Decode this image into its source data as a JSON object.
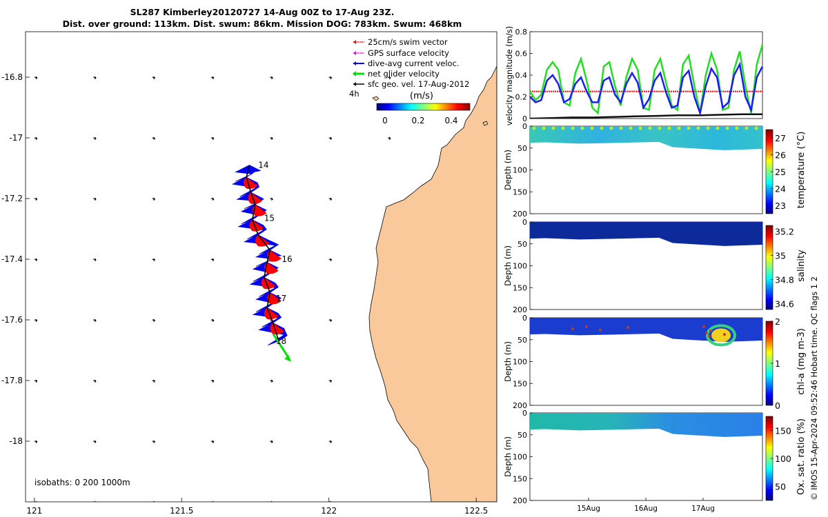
{
  "title_line1": "SL287 Kimberley20120727 14-Aug 00Z to 17-Aug 23Z.",
  "title_line2": "Dist. over ground: 113km. Dist. swum: 86km. Mission DOG: 783km. Swum: 468km",
  "colors": {
    "land": "#f9c99b",
    "swim": "#ff0000",
    "gps": "#ff00ff",
    "current": "#0000ff",
    "net": "#00dd00",
    "sfc": "#000000"
  },
  "chart_data": [
    {
      "id": "map",
      "type": "scatter",
      "x_ticks": [
        "121",
        "121.5",
        "122",
        "122.5"
      ],
      "y_ticks": [
        "-16.8",
        "-17",
        "-17.2",
        "-17.4",
        "-17.6",
        "-17.8",
        "-18"
      ],
      "xlim": [
        120.97,
        122.57
      ],
      "ylim": [
        -18.2,
        -16.65
      ],
      "legend": [
        "25cm/s swim vector",
        "GPS surface velocity",
        "dive-avg current veloc.",
        "net glider velocity",
        "sfc geo. vel. 17-Aug-2012"
      ],
      "legend_extra_label": "4h",
      "colorbar_label": "(m/s)",
      "colorbar_ticks": [
        "0",
        "0.2",
        "0.4"
      ],
      "day_labels": [
        "14",
        "15",
        "16",
        "17",
        "18"
      ],
      "day_label_positions": [
        {
          "lon": 121.76,
          "lat": -17.09
        },
        {
          "lon": 121.78,
          "lat": -17.265
        },
        {
          "lon": 121.84,
          "lat": -17.4
        },
        {
          "lon": 121.82,
          "lat": -17.53
        },
        {
          "lon": 121.82,
          "lat": -17.67
        }
      ],
      "track": [
        {
          "lon": 121.73,
          "lat": -17.09
        },
        {
          "lon": 121.72,
          "lat": -17.13
        },
        {
          "lon": 121.735,
          "lat": -17.18
        },
        {
          "lon": 121.75,
          "lat": -17.22
        },
        {
          "lon": 121.74,
          "lat": -17.27
        },
        {
          "lon": 121.76,
          "lat": -17.32
        },
        {
          "lon": 121.8,
          "lat": -17.37
        },
        {
          "lon": 121.79,
          "lat": -17.41
        },
        {
          "lon": 121.78,
          "lat": -17.46
        },
        {
          "lon": 121.8,
          "lat": -17.51
        },
        {
          "lon": 121.79,
          "lat": -17.56
        },
        {
          "lon": 121.81,
          "lat": -17.61
        },
        {
          "lon": 121.83,
          "lat": -17.67
        }
      ],
      "isobath_text": "isobaths: 0   200  1000m"
    },
    {
      "id": "velocity",
      "type": "line",
      "ylabel": "velocity magnitude (m/s)",
      "y_ticks": [
        "0",
        "0.2",
        "0.4",
        "0.6",
        "0.8"
      ],
      "ylim": [
        0,
        0.8
      ],
      "x_range_days": [
        14.1,
        18.0
      ],
      "swim_const": 0.25,
      "series": [
        {
          "name": "net glider velocity",
          "values": [
            0.25,
            0.17,
            0.22,
            0.45,
            0.52,
            0.45,
            0.15,
            0.12,
            0.42,
            0.55,
            0.35,
            0.1,
            0.05,
            0.48,
            0.52,
            0.3,
            0.12,
            0.38,
            0.55,
            0.45,
            0.1,
            0.08,
            0.45,
            0.55,
            0.33,
            0.12,
            0.08,
            0.5,
            0.58,
            0.3,
            0.05,
            0.4,
            0.6,
            0.45,
            0.08,
            0.1,
            0.45,
            0.62,
            0.3,
            0.05,
            0.5,
            0.68
          ]
        },
        {
          "name": "dive-avg current veloc.",
          "values": [
            0.2,
            0.15,
            0.17,
            0.35,
            0.4,
            0.32,
            0.15,
            0.18,
            0.32,
            0.38,
            0.25,
            0.15,
            0.15,
            0.35,
            0.38,
            0.22,
            0.15,
            0.32,
            0.42,
            0.33,
            0.1,
            0.18,
            0.35,
            0.42,
            0.24,
            0.1,
            0.12,
            0.38,
            0.44,
            0.2,
            0.05,
            0.3,
            0.46,
            0.38,
            0.1,
            0.15,
            0.4,
            0.5,
            0.2,
            0.08,
            0.38,
            0.48
          ]
        },
        {
          "name": "sfc geo. vel.",
          "values": [
            0.0,
            0.005,
            0.01,
            0.01,
            0.015,
            0.02,
            0.025,
            0.03,
            0.03,
            0.035,
            0.04,
            0.04
          ]
        }
      ]
    },
    {
      "id": "temperature",
      "type": "heatmap",
      "ylabel": "Depth (m)",
      "colorbar_label": "temperature (°C)",
      "y_ticks": [
        "0",
        "50",
        "100",
        "150",
        "200"
      ],
      "colorbar_ticks": [
        "23",
        "24",
        "25",
        "26",
        "27"
      ],
      "clim": [
        22.5,
        27.5
      ]
    },
    {
      "id": "salinity",
      "type": "heatmap",
      "ylabel": "Depth (m)",
      "colorbar_label": "salinity",
      "y_ticks": [
        "0",
        "50",
        "100",
        "150",
        "200"
      ],
      "colorbar_ticks": [
        "34.6",
        "34.8",
        "35",
        "35.2"
      ],
      "clim": [
        34.55,
        35.25
      ]
    },
    {
      "id": "chla",
      "type": "heatmap",
      "ylabel": "Depth (m)",
      "colorbar_label": "chl-a (mg m-3)",
      "y_ticks": [
        "0",
        "50",
        "100",
        "150",
        "200"
      ],
      "colorbar_ticks": [
        "0",
        "1",
        "2"
      ],
      "clim": [
        0,
        2
      ]
    },
    {
      "id": "oxygen",
      "type": "heatmap",
      "ylabel": "Depth (m)",
      "colorbar_label": "Ox. sat. ratio (%)",
      "y_ticks": [
        "0",
        "50",
        "100",
        "150",
        "200"
      ],
      "colorbar_ticks": [
        "50",
        "100",
        "150"
      ],
      "clim": [
        25,
        175
      ]
    }
  ],
  "time_ticks": [
    "15Aug",
    "16Aug",
    "17Aug"
  ],
  "side_note": "© IMOS 15-Apr-2024 09:52:46 Hobart time. QC flags 1  2"
}
